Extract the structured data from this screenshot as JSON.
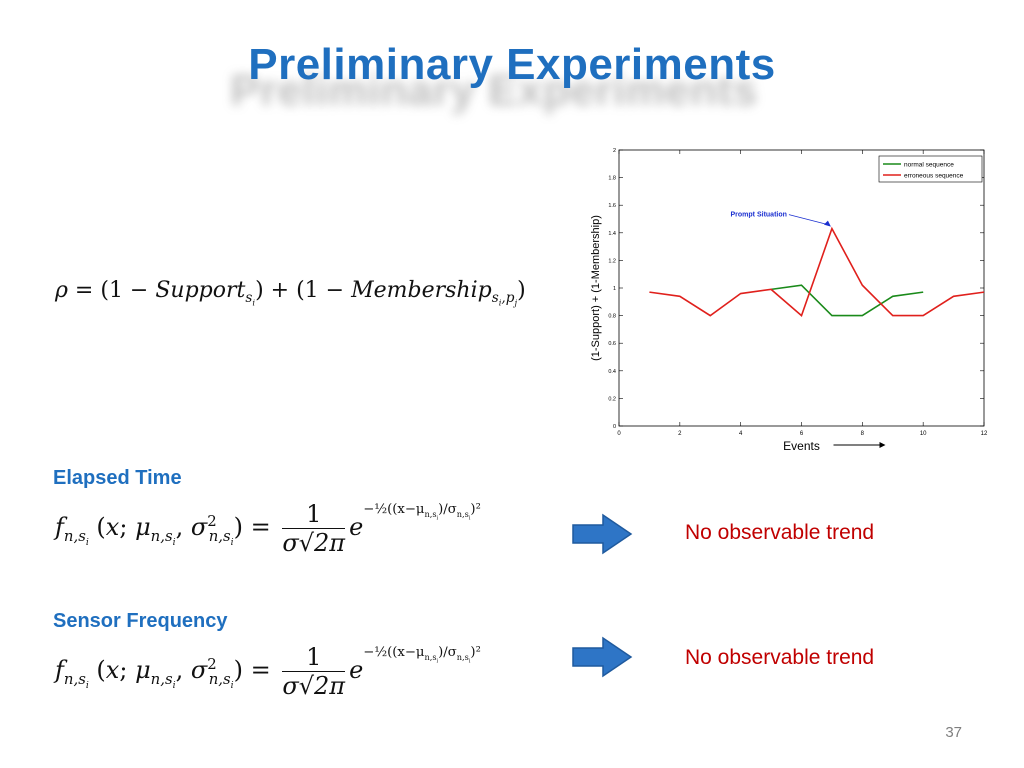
{
  "slide": {
    "title": "Preliminary Experiments",
    "page_number": "37"
  },
  "formula_rho": "ρ = (1 − Support",
  "sections": [
    {
      "label": "Elapsed Time",
      "result": "No observable trend"
    },
    {
      "label": "Sensor Frequency",
      "result": "No observable trend"
    }
  ],
  "colors": {
    "accent": "#1f6fbf",
    "result": "#c00000",
    "arrow": "#2e75c6"
  },
  "chart_data": {
    "type": "line",
    "xlabel": "Events",
    "ylabel": "(1-Support) + (1-Membership)",
    "xlim": [
      0,
      12
    ],
    "ylim": [
      0,
      2
    ],
    "xticks": [
      0,
      2,
      4,
      6,
      8,
      10,
      12
    ],
    "yticks": [
      0,
      0.2,
      0.4,
      0.6,
      0.8,
      1,
      1.2,
      1.4,
      1.6,
      1.8,
      2
    ],
    "legend_position": "top-right",
    "series": [
      {
        "name": "normal sequence",
        "color": "#1a8a1a",
        "x": [
          5,
          6,
          7,
          8,
          9,
          10
        ],
        "y": [
          0.99,
          1.02,
          0.8,
          0.8,
          0.94,
          0.97
        ]
      },
      {
        "name": "erroneous sequence",
        "color": "#e0201c",
        "x": [
          1,
          2,
          3,
          4,
          5,
          6,
          7,
          8,
          9,
          10,
          11,
          12
        ],
        "y": [
          0.97,
          0.94,
          0.8,
          0.96,
          0.99,
          0.8,
          1.43,
          1.02,
          0.8,
          0.8,
          0.94,
          0.97
        ]
      }
    ],
    "annotation": {
      "text": "Prompt Situation",
      "x": 7,
      "y": 1.43
    }
  }
}
